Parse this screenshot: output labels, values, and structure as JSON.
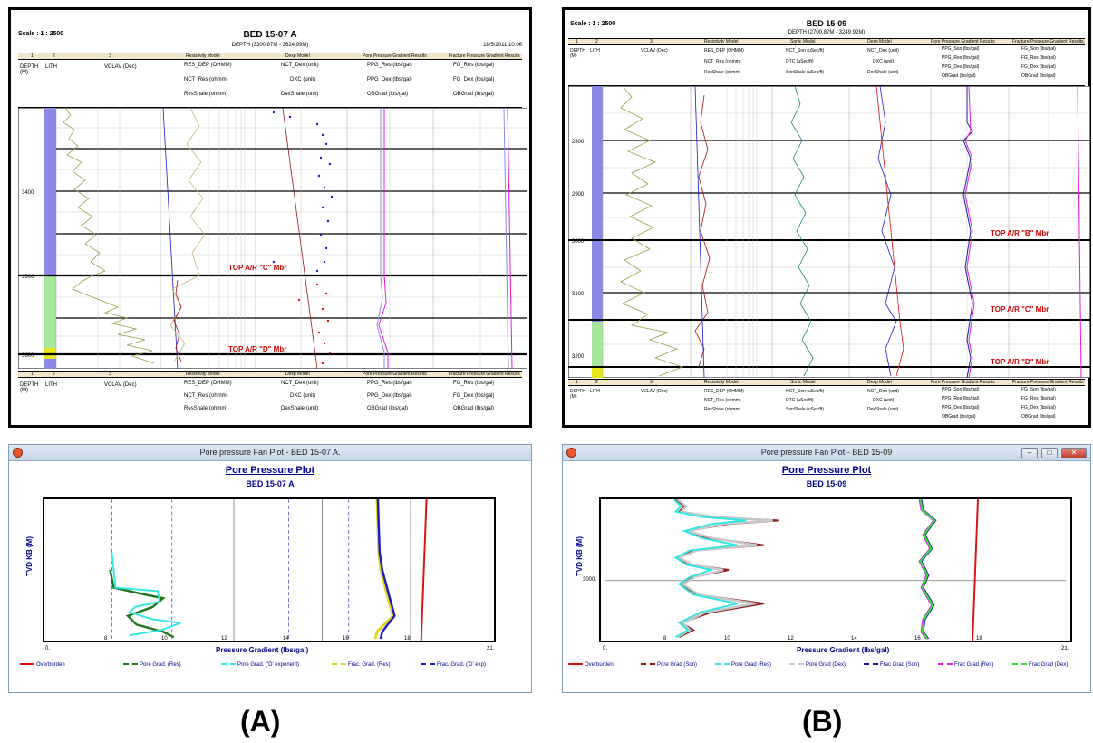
{
  "panel_a": {
    "scale": "Scale : 1 : 2500",
    "title": "BED 15-07 A",
    "depth_range": "DEPTH (3300.87M - 3624.99M)",
    "date": "18/5/2011 10:06",
    "col_numbers": [
      "1",
      "2",
      "3"
    ],
    "col_depth": "DEPTH (M)",
    "col_lith": "LITH",
    "track_vclav": "VCLAV (Dec)",
    "track_resistivity": "Resistivity Model",
    "track_dexp": "Dexp Model",
    "track_ppg": "Pore Pressure Gradient Results",
    "track_fg": "Fracture Pressure Gradient Results",
    "curve_res_dep": "RES_DEP (OHMM)",
    "curve_nct_res": "NCT_Res (ohmm)",
    "curve_resshale": "ResShale (ohmm)",
    "curve_nct_dex": "NCT_Dex (unit)",
    "curve_dxc": "DXC (unit)",
    "curve_dexshale": "DexShale (unit)",
    "curve_ppg_res": "PPG_Res (lbs/gal)",
    "curve_ppg_dex": "PPG_Dex (lbs/gal)",
    "curve_obgrad": "OBGrad (lbs/gal)",
    "curve_fg_res": "FG_Res (lbs/gal)",
    "curve_fg_dex": "FG_Dex (lbs/gal)",
    "depth_ticks": [
      "3400",
      "3500",
      "3600"
    ],
    "top_c": "TOP A/R \"C\" Mbr",
    "top_d": "TOP A/R \"D\" Mbr"
  },
  "panel_b": {
    "scale": "Scale : 1 : 2500",
    "title": "BED 15-09",
    "depth_range": "DEPTH (2700.87M - 3249.92M)",
    "track_sonic": "Sonic Model",
    "curve_nct_son": "NCT_Son (uSec/ft)",
    "curve_dtc": "DTC (uSec/ft)",
    "curve_sonshale": "SonShale (uSec/ft)",
    "curve_ppg_son": "PPG_Son (lbs/gal)",
    "curve_fg_son": "FG_Son (lbs/gal)",
    "depth_ticks": [
      "2800",
      "2900",
      "3000",
      "3100",
      "3200"
    ],
    "top_b": "TOP A/R \"B\" Mbr",
    "top_c": "TOP A/R \"C\" Mbr",
    "top_d": "TOP A/R \"D\" Mbr"
  },
  "fan_a": {
    "window_title": "Pore pressure Fan Plot - BED 15-07 A.",
    "plot_title": "Pore Pressure Plot",
    "well": "BED 15-07 A",
    "ylabel": "TVD KB (M)",
    "xlabel": "Pressure Gradient (lbs/gal)",
    "x_min": "0.",
    "x_max": "21.",
    "x_ticks": [
      "8",
      "10",
      "12",
      "14",
      "16",
      "18"
    ],
    "legend": [
      "Overburden",
      "Pore Grad. (Res)",
      "Pore Grad. ('D' exponent)",
      "Frac. Grad. (Res)",
      "Frac. Grad. ('D' exp)"
    ]
  },
  "fan_b": {
    "window_title": "Pore pressure Fan Plot - BED 15-09",
    "plot_title": "Pore Pressure Plot",
    "well": "BED 15-09",
    "ylabel": "TVD KB (M)",
    "xlabel": "Pressure Gradient (lbs/gal)",
    "x_min": "0.",
    "x_max": "21.",
    "y_tick": "3000.",
    "x_ticks": [
      "8",
      "10",
      "12",
      "14",
      "16",
      "18"
    ],
    "legend": [
      "Overburden",
      "Pore Grad (Son)",
      "Pore Grad (Res)",
      "Pore Grad (Dex)",
      "Frac Grad (Son)",
      "Frac Grad (Res)",
      "Frac Grad (Dex)"
    ]
  },
  "caption_a": "(A)",
  "caption_b": "(B)",
  "colors": {
    "overburden": "#e01010",
    "pore_res": "#1a7a1a",
    "pore_dexp": "#33e5e5",
    "frac_res": "#e5d21a",
    "frac_dexp": "#1a1ad0",
    "pore_son": "#8b1a1a",
    "pore_dex_b": "#c8c8c8",
    "frac_son": "#1a1a9b",
    "frac_res_b": "#e61ae6",
    "frac_dex_b": "#33e533"
  }
}
